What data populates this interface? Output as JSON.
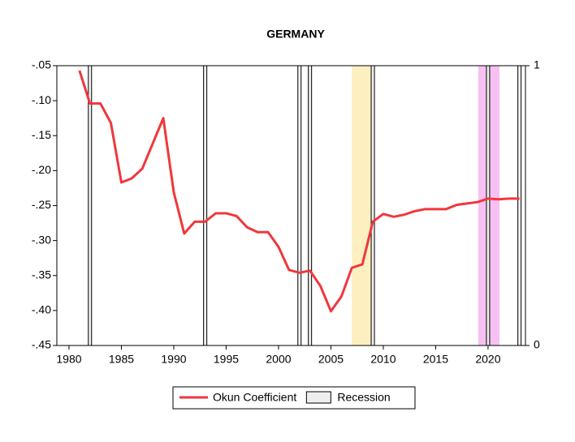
{
  "chart_data": {
    "type": "line",
    "title": "GERMANY",
    "x": [
      1981,
      1982,
      1983,
      1984,
      1985,
      1986,
      1987,
      1988,
      1989,
      1990,
      1991,
      1992,
      1993,
      1994,
      1995,
      1996,
      1997,
      1998,
      1999,
      2000,
      2001,
      2002,
      2003,
      2004,
      2005,
      2006,
      2007,
      2008,
      2009,
      2010,
      2011,
      2012,
      2013,
      2014,
      2015,
      2016,
      2017,
      2018,
      2019,
      2020,
      2021,
      2022,
      2023
    ],
    "series": [
      {
        "name": "Okun Coefficient",
        "color": "#f0373c",
        "values": [
          -0.057,
          -0.104,
          -0.104,
          -0.132,
          -0.217,
          -0.211,
          -0.197,
          -0.161,
          -0.125,
          -0.231,
          -0.29,
          -0.273,
          -0.273,
          -0.261,
          -0.261,
          -0.265,
          -0.281,
          -0.288,
          -0.288,
          -0.309,
          -0.342,
          -0.346,
          -0.343,
          -0.365,
          -0.401,
          -0.38,
          -0.339,
          -0.334,
          -0.273,
          -0.262,
          -0.266,
          -0.263,
          -0.258,
          -0.255,
          -0.255,
          -0.255,
          -0.249,
          -0.247,
          -0.245,
          -0.24,
          -0.241,
          -0.24,
          -0.24
        ]
      },
      {
        "name": "Recession",
        "type": "bar",
        "axis": "y2",
        "color": "#eeeeee",
        "x": [
          1982,
          1993,
          2002,
          2003,
          2009,
          2020,
          2023
        ],
        "values": [
          1,
          1,
          1,
          1,
          1,
          1,
          1
        ]
      }
    ],
    "shaded_regions": [
      {
        "x": [
          2007,
          2008.84
        ],
        "color": "#fdefc0"
      },
      {
        "x": [
          2019.07,
          2021.09
        ],
        "color": "#f7c0f3"
      }
    ],
    "xlim": [
      1978.84,
      2023.57
    ],
    "xticks": [
      1980,
      1985,
      1990,
      1995,
      2000,
      2005,
      2010,
      2015,
      2020
    ],
    "ylim": [
      -0.45,
      -0.05
    ],
    "yticks": [
      {
        "value": -0.45,
        "label": "-.45"
      },
      {
        "value": -0.4,
        "label": "-.40"
      },
      {
        "value": -0.35,
        "label": "-.35"
      },
      {
        "value": -0.3,
        "label": "-.30"
      },
      {
        "value": -0.25,
        "label": "-.25"
      },
      {
        "value": -0.2,
        "label": "-.20"
      },
      {
        "value": -0.15,
        "label": "-.15"
      },
      {
        "value": -0.1,
        "label": "-.10"
      },
      {
        "value": -0.05,
        "label": "-.05"
      }
    ],
    "y2lim": [
      0,
      1
    ],
    "y2ticks": [
      0,
      1
    ],
    "legend": "bottom"
  }
}
